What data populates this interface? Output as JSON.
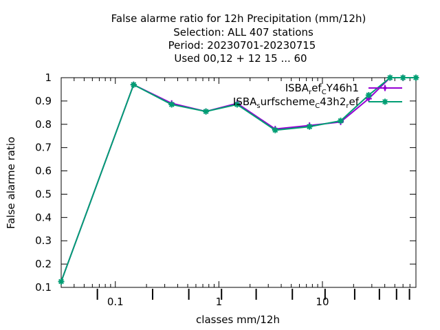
{
  "chart_data": {
    "type": "line",
    "title_lines": [
      "False alarme ratio  for 12h Precipitation (mm/12h)",
      "Selection: ALL    407 stations",
      "Period: 20230701-20230715",
      "Used  00,12  + 12 15 ... 60"
    ],
    "xlabel": "classes mm/12h",
    "ylabel": "False alarme ratio",
    "x_scale": "log",
    "xlim": [
      0.03,
      80
    ],
    "ylim": [
      0.1,
      1.0
    ],
    "x_tick_labels": [
      "0.1",
      "1",
      "10"
    ],
    "y_tick_labels": [
      "0.1",
      "0.2",
      "0.3",
      "0.4",
      "0.5",
      "0.6",
      "0.7",
      "0.8",
      "0.9",
      "1"
    ],
    "legend_position": "top-right",
    "series": [
      {
        "legend": {
          "main": "ISBA",
          "s1": "r",
          "mid1": "ef",
          "s2": "C",
          "tail": "Y46h1"
        },
        "color": "#9400d3",
        "marker": "plus",
        "x": [
          0.03,
          0.15,
          0.35,
          0.75,
          1.5,
          3.5,
          7.5,
          15,
          28,
          45,
          60,
          80
        ],
        "y": [
          0.125,
          0.97,
          0.89,
          0.855,
          0.89,
          0.78,
          0.795,
          0.81,
          0.91,
          1.0,
          1.0,
          1.0
        ]
      },
      {
        "legend": {
          "main": "ISBA",
          "s1": "s",
          "mid1": "urfscheme",
          "s2": "C",
          "tail": "43h2",
          "s3": "r",
          "tail2": "ef"
        },
        "color": "#009e73",
        "marker": "star",
        "x": [
          0.03,
          0.15,
          0.35,
          0.75,
          1.5,
          3.5,
          7.5,
          15,
          28,
          45,
          60,
          80
        ],
        "y": [
          0.125,
          0.97,
          0.885,
          0.855,
          0.885,
          0.775,
          0.79,
          0.815,
          0.925,
          1.0,
          1.0,
          1.0
        ]
      }
    ]
  }
}
